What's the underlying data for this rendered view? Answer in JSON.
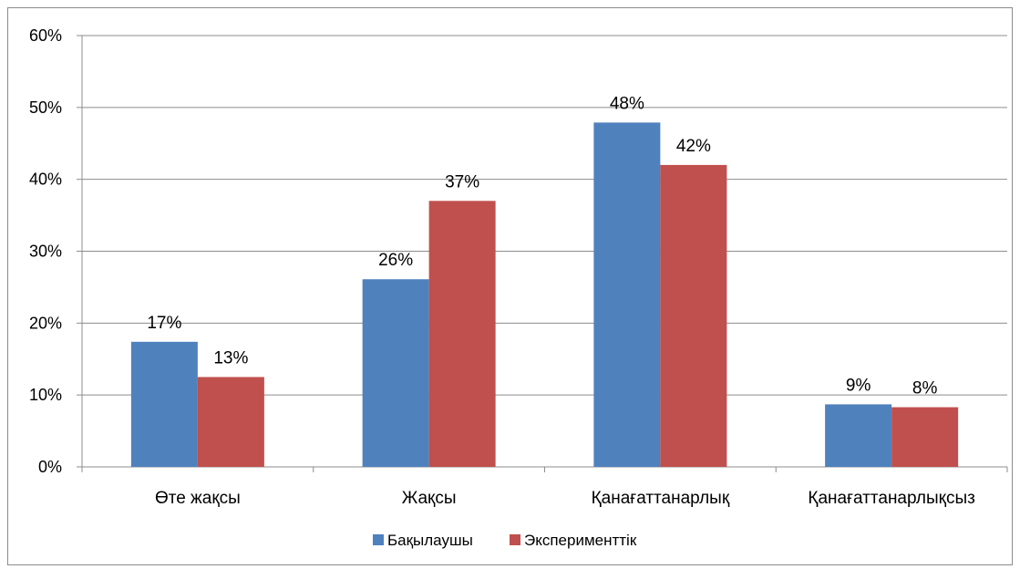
{
  "chart_data": {
    "type": "bar",
    "categories": [
      "Өте жақсы",
      "Жақсы",
      "Қанағаттанарлық",
      "Қанағаттанарлықсыз"
    ],
    "series": [
      {
        "name": "Бақылаушы",
        "color": "#4F81BD",
        "values": [
          17.4,
          26.1,
          47.9,
          8.7
        ],
        "labels": [
          "17%",
          "26%",
          "48%",
          "9%"
        ]
      },
      {
        "name": "Эксперименттік",
        "color": "#C0504D",
        "values": [
          12.5,
          37,
          42,
          8.3
        ],
        "labels": [
          "13%",
          "37%",
          "42%",
          "8%"
        ]
      }
    ],
    "y_ticks": [
      0,
      10,
      20,
      30,
      40,
      50,
      60
    ],
    "y_tick_labels": [
      "0%",
      "10%",
      "20%",
      "30%",
      "40%",
      "50%",
      "60%"
    ],
    "ylim": [
      0,
      60
    ],
    "grid": true,
    "legend_position": "bottom",
    "gridline_color": "#8c8c8c"
  }
}
